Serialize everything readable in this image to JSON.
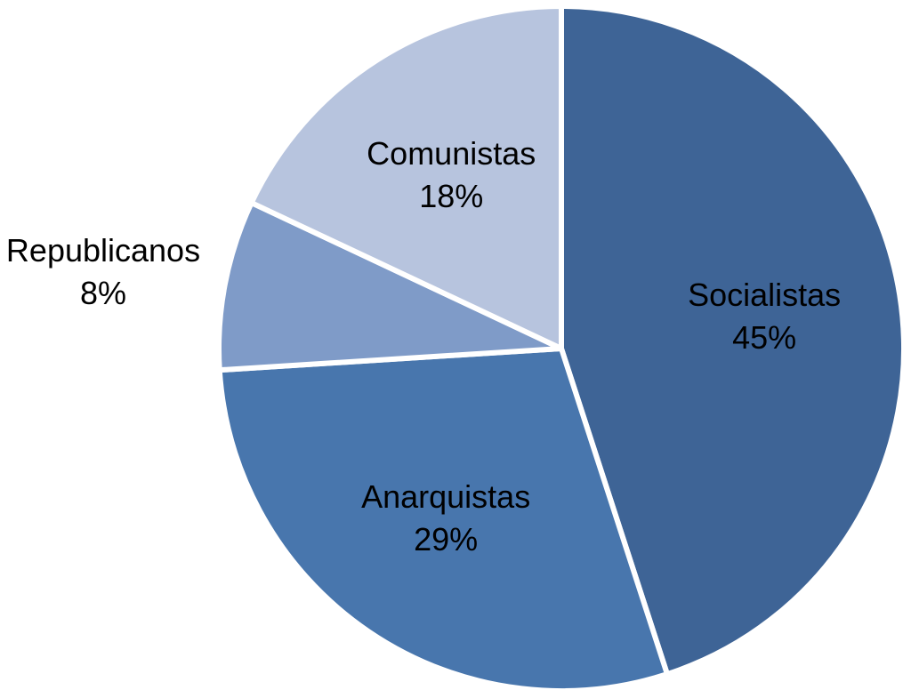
{
  "chart_data": {
    "type": "pie",
    "title": "",
    "start_angle_deg": 0,
    "direction": "clockwise",
    "legend": "none",
    "slices": [
      {
        "name": "Socialistas",
        "value": 45,
        "value_label": "45%",
        "color": "#3e6496",
        "label_position": "inside"
      },
      {
        "name": "Anarquistas",
        "value": 29,
        "value_label": "29%",
        "color": "#4876ad",
        "label_position": "inside"
      },
      {
        "name": "Republicanos",
        "value": 8,
        "value_label": "8%",
        "color": "#7f9bc8",
        "label_position": "outside"
      },
      {
        "name": "Comunistas",
        "value": 18,
        "value_label": "18%",
        "color": "#b7c4de",
        "label_position": "inside"
      }
    ]
  }
}
